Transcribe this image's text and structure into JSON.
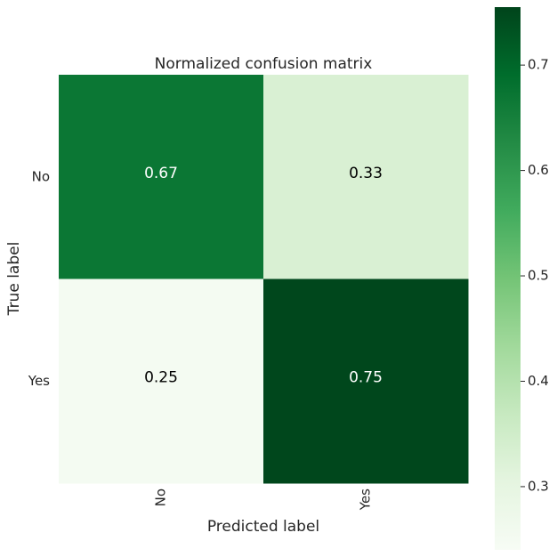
{
  "chart_data": {
    "type": "heatmap",
    "title": "Normalized confusion matrix",
    "xlabel": "Predicted label",
    "ylabel": "True label",
    "x_categories": [
      "No",
      "Yes"
    ],
    "y_categories": [
      "No",
      "Yes"
    ],
    "values": [
      [
        0.67,
        0.33
      ],
      [
        0.25,
        0.75
      ]
    ],
    "value_labels": [
      [
        "0.67",
        "0.33"
      ],
      [
        "0.25",
        "0.75"
      ]
    ],
    "colormap": "Greens",
    "colorbar": {
      "range": [
        0.24,
        0.755
      ],
      "ticks": [
        0.3,
        0.4,
        0.5,
        0.6,
        0.7
      ],
      "tick_labels": [
        "0.3",
        "0.4",
        "0.5",
        "0.6",
        "0.7"
      ]
    },
    "grid": false,
    "legend": "colorbar-right"
  },
  "colors": {
    "text_dark": "#262626",
    "text_light": "#ffffff",
    "greens_scale": [
      "#f7fcf5",
      "#e5f5e0",
      "#c7e9c0",
      "#a1d99b",
      "#74c476",
      "#41ab5d",
      "#238b45",
      "#006d2c",
      "#00441b"
    ]
  }
}
